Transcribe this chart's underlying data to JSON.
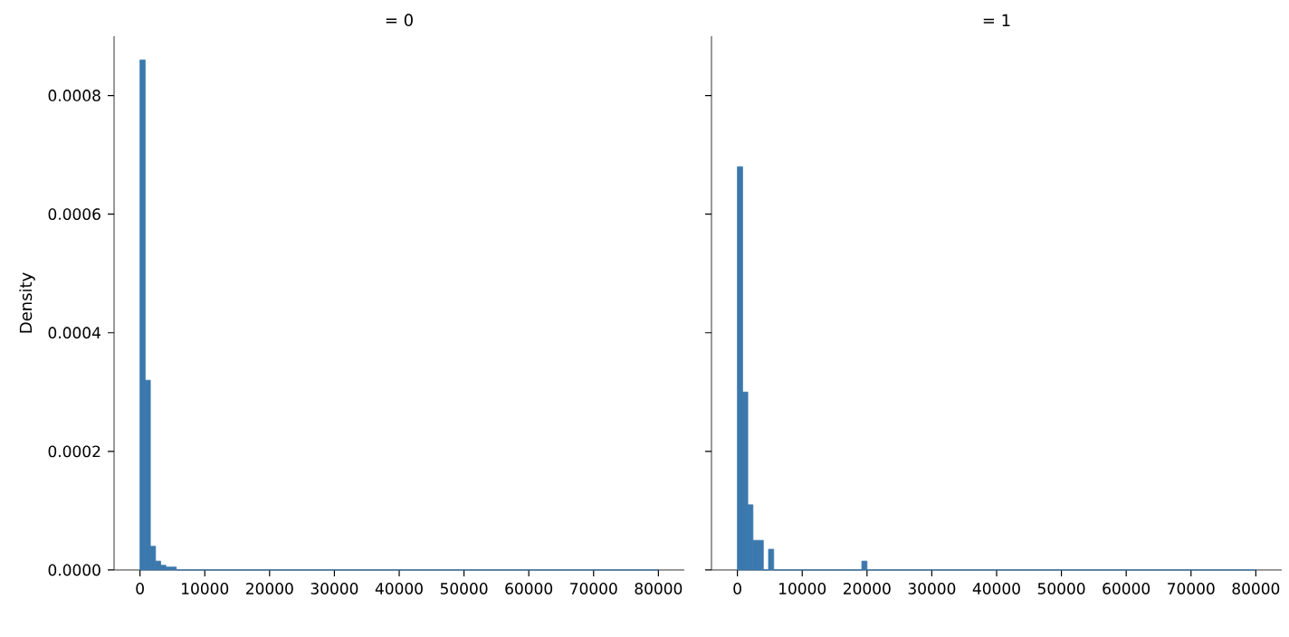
{
  "chart_data": [
    {
      "type": "histogram",
      "title": "= 0",
      "ylabel": "Density",
      "color": "#3b78ad",
      "bins": [
        0,
        800,
        1600,
        2400,
        3200,
        4000,
        4800,
        5600,
        6400,
        7200,
        8000,
        8800,
        9600,
        10400,
        11200,
        12000,
        12800,
        13600,
        14400,
        15200,
        16000,
        16800,
        17600,
        18400,
        19200,
        20000,
        20800,
        21600,
        22400,
        23200,
        24000,
        24800,
        25600,
        26400,
        27200,
        28000,
        28800,
        29600,
        30400,
        31200,
        32000,
        32800,
        33600,
        34400,
        35200,
        36000,
        36800,
        37600,
        38400,
        39200,
        40000,
        40800,
        41600,
        42400,
        43200,
        44000,
        44800,
        45600,
        46400,
        47200,
        48000,
        48800,
        49600,
        50400,
        51200,
        52000,
        52800,
        53600,
        54400,
        55200,
        56000,
        56800,
        57600,
        58400,
        59200,
        60000,
        60800,
        61600,
        62400,
        63200,
        64000,
        64800,
        65600,
        66400,
        67200,
        68000,
        68800,
        69600,
        70400,
        71200,
        72000,
        72800,
        73600,
        74400,
        75200,
        76000,
        76800,
        77600,
        78400,
        79200,
        80000
      ],
      "values": [
        0.00086,
        0.00032,
        4e-05,
        1.5e-05,
        8e-06,
        5e-06,
        5e-06,
        0,
        0,
        0,
        0,
        0,
        0,
        0,
        0,
        0,
        0,
        0,
        0,
        0,
        0,
        0,
        0,
        0,
        0,
        0,
        0,
        0,
        0,
        0,
        0,
        0,
        0,
        0,
        0,
        0,
        0,
        0,
        0,
        0,
        0,
        0,
        0,
        0,
        0,
        0,
        0,
        0,
        0,
        0,
        0,
        0,
        0,
        0,
        0,
        0,
        0,
        0,
        0,
        0,
        0,
        0,
        0,
        0,
        0,
        0,
        0,
        0,
        0,
        0,
        0,
        0,
        0,
        0,
        0,
        0,
        0,
        0,
        0,
        0,
        0,
        0,
        0,
        0,
        0,
        0,
        0,
        0,
        0,
        0,
        0,
        0,
        0,
        0,
        0,
        0,
        0,
        0,
        0,
        0
      ],
      "xlim": [
        -4000,
        84000
      ],
      "xticks": [
        0,
        10000,
        20000,
        30000,
        40000,
        50000,
        60000,
        70000,
        80000
      ],
      "ylim": [
        0,
        0.0009
      ],
      "yticks": [
        {
          "value": 0,
          "label": "0.0000"
        },
        {
          "value": 0.0002,
          "label": "0.0002"
        },
        {
          "value": 0.0004,
          "label": "0.0004"
        },
        {
          "value": 0.0006,
          "label": "0.0006"
        },
        {
          "value": 0.0008,
          "label": "0.0008"
        }
      ]
    },
    {
      "type": "histogram",
      "title": "= 1",
      "color": "#3b78ad",
      "tick_labels": "x",
      "bins": [
        0,
        800,
        1600,
        2400,
        3200,
        4000,
        4800,
        5600,
        6400,
        7200,
        8000,
        8800,
        9600,
        10400,
        11200,
        12000,
        12800,
        13600,
        14400,
        15200,
        16000,
        16800,
        17600,
        18400,
        19200,
        20000,
        20800,
        21600,
        22400,
        23200,
        24000,
        24800,
        25600,
        26400,
        27200,
        28000,
        28800,
        29600,
        30400,
        31200,
        32000,
        32800,
        33600,
        34400,
        35200,
        36000,
        36800,
        37600,
        38400,
        39200,
        40000,
        40800,
        41600,
        42400,
        43200,
        44000,
        44800,
        45600,
        46400,
        47200,
        48000,
        48800,
        49600,
        50400,
        51200,
        52000,
        52800,
        53600,
        54400,
        55200,
        56000,
        56800,
        57600,
        58400,
        59200,
        60000,
        60800,
        61600,
        62400,
        63200,
        64000,
        64800,
        65600,
        66400,
        67200,
        68000,
        68800,
        69600,
        70400,
        71200,
        72000,
        72800,
        73600,
        74400,
        75200,
        76000,
        76800,
        77600,
        78400,
        79200,
        80000
      ],
      "values": [
        0.00068,
        0.0003,
        0.00011,
        5e-05,
        5e-05,
        0,
        3.5e-05,
        0,
        0,
        0,
        0,
        0,
        0,
        0,
        0,
        0,
        0,
        0,
        0,
        0,
        0,
        0,
        0,
        0,
        1.5e-05,
        0,
        0,
        0,
        0,
        0,
        0,
        0,
        0,
        0,
        0,
        0,
        0,
        0,
        0,
        0,
        0,
        0,
        0,
        0,
        0,
        0,
        0,
        0,
        0,
        0,
        0,
        0,
        0,
        0,
        0,
        0,
        0,
        0,
        0,
        0,
        0,
        0,
        0,
        0,
        0,
        0,
        0,
        0,
        0,
        0,
        0,
        0,
        0,
        0,
        0,
        0,
        0,
        0,
        0,
        0,
        0,
        0,
        0,
        0,
        0,
        0,
        0,
        0,
        0,
        0,
        0,
        0,
        0,
        0,
        0,
        0,
        0,
        0,
        0,
        0
      ],
      "xlim": [
        -4000,
        84000
      ],
      "xticks": [
        0,
        10000,
        20000,
        30000,
        40000,
        50000,
        60000,
        70000,
        80000
      ],
      "ylim": [
        0,
        0.0009
      ],
      "yticks": [
        0,
        0.0002,
        0.0004,
        0.0006,
        0.0008
      ]
    }
  ]
}
